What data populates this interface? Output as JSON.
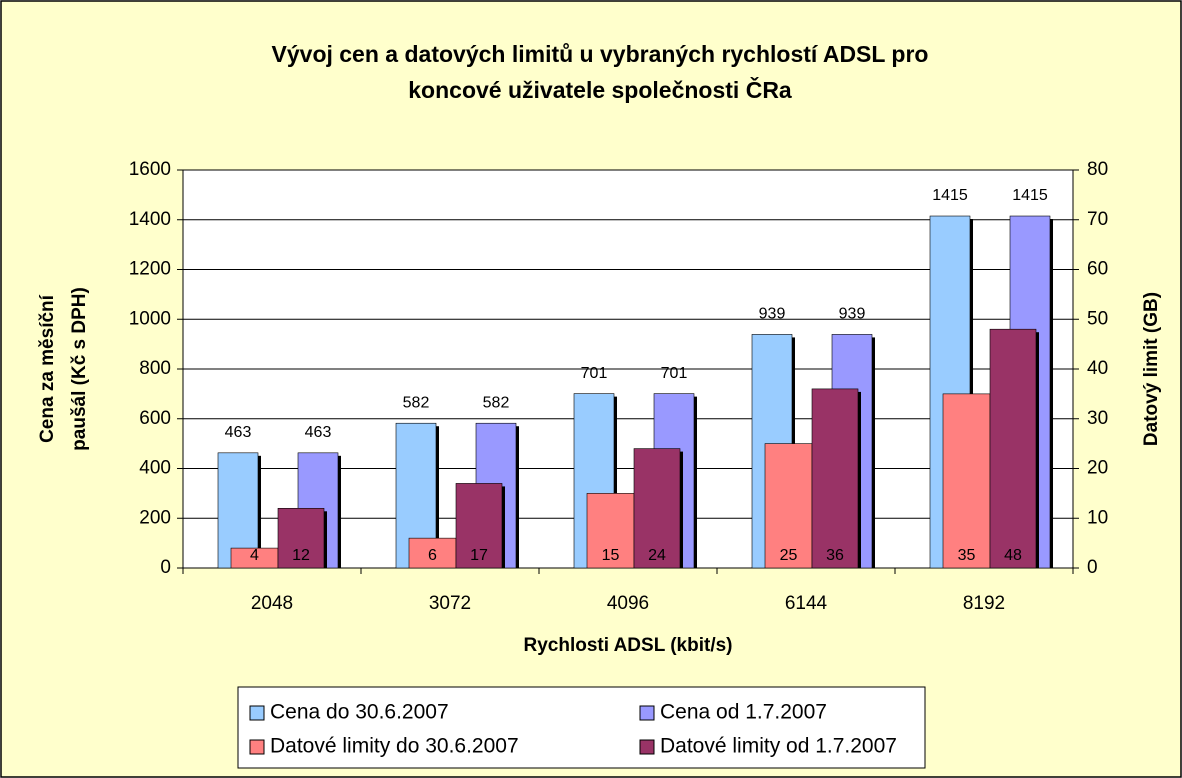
{
  "chart_data": {
    "type": "bar",
    "title": [
      "Vývoj cen a datových limitů u vybraných rychlostí ADSL pro",
      "koncové uživatele společnosti ČRa"
    ],
    "x_label": "Rychlosti ADSL (kbit/s)",
    "y_label": [
      "Cena za měsíční",
      "paušál (Kč s DPH)"
    ],
    "y2_label": "Datový limit (GB)",
    "categories": [
      "2048",
      "3072",
      "4096",
      "6144",
      "8192"
    ],
    "series": [
      {
        "name": "Cena do 30.6.2007",
        "color": "#99ccff",
        "values": [
          463,
          582,
          701,
          939,
          1415
        ]
      },
      {
        "name": "Cena od 1.7.2007",
        "color": "#9999ff",
        "values": [
          463,
          582,
          701,
          939,
          1415
        ]
      },
      {
        "name": "Datové limity do 30.6.2007",
        "color": "#ff8080",
        "axis": "y2",
        "values": [
          4,
          6,
          15,
          25,
          35
        ]
      },
      {
        "name": "Datové limity od 1.7.2007",
        "color": "#993366",
        "axis": "y2",
        "values": [
          12,
          17,
          24,
          36,
          48
        ]
      }
    ],
    "ylim": [
      0,
      1600
    ],
    "yticks": [
      0,
      200,
      400,
      600,
      800,
      1000,
      1200,
      1400,
      1600
    ],
    "y2lim": [
      0,
      80
    ],
    "y2ticks": [
      0,
      10,
      20,
      30,
      40,
      50,
      60,
      70,
      80
    ],
    "grid": true
  }
}
